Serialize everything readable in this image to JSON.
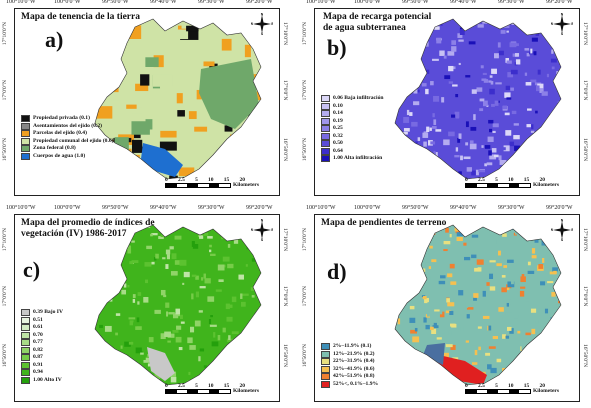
{
  "coords": {
    "top": [
      "100°10'0\"W",
      "100°0'0\"W",
      "99°50'0\"W",
      "99°40'0\"W",
      "99°30'0\"W",
      "99°20'0\"W"
    ],
    "side": [
      "17°10'0\"N",
      "17°0'0\"N",
      "16°50'0\"N"
    ]
  },
  "scale": {
    "ticks": [
      "0",
      "2.5",
      "5",
      "10",
      "15",
      "20"
    ],
    "unit": "Kilometers"
  },
  "compass": {
    "n": "N",
    "s": "S",
    "e": "E",
    "w": "W"
  },
  "panels": {
    "a": {
      "title": "Mapa de tenencia de la tierra",
      "letter": "a)",
      "legend": [
        {
          "label": "Propiedad privada (0.1)",
          "color": "#111111"
        },
        {
          "label": "Asentamientos del ejido (0.2)",
          "color": "#888888"
        },
        {
          "label": "Parcelas del ejido (0.4)",
          "color": "#f0a020"
        },
        {
          "label": "Propiedad comunal del ejido (0.6)",
          "color": "#cfe3a6"
        },
        {
          "label": "Zona federal (0.8)",
          "color": "#6fa86a"
        },
        {
          "label": "Cuerpos de agua (1.0)",
          "color": "#1e6fd0"
        }
      ]
    },
    "b": {
      "title": "Mapa de recarga potencial de agua subterranea",
      "letter": "b)",
      "legend": [
        {
          "label": "0.06 Baja infiltración",
          "color": "#dcd8f8"
        },
        {
          "label": "0.10",
          "color": "#c8c2f4"
        },
        {
          "label": "0.14",
          "color": "#b4acf0"
        },
        {
          "label": "0.19",
          "color": "#a096ec"
        },
        {
          "label": "0.25",
          "color": "#8c80e8"
        },
        {
          "label": "0.32",
          "color": "#786ae2"
        },
        {
          "label": "0.50",
          "color": "#5a4cd8"
        },
        {
          "label": "0.64",
          "color": "#3c2ecc"
        },
        {
          "label": "1.00 Alta infiltración",
          "color": "#1a10b8"
        }
      ]
    },
    "c": {
      "title": "Mapa del promedio de índices de vegetación (IV) 1986-2017",
      "letter": "c)",
      "legend": [
        {
          "label": "0.39 Bajo IV",
          "color": "#c8c8c8"
        },
        {
          "label": "0.51",
          "color": "#e8f4e0"
        },
        {
          "label": "0.61",
          "color": "#d4ecc4"
        },
        {
          "label": "0.70",
          "color": "#bfe4a6"
        },
        {
          "label": "0.77",
          "color": "#a8dc88"
        },
        {
          "label": "0.82",
          "color": "#90d468"
        },
        {
          "label": "0.87",
          "color": "#76cc48"
        },
        {
          "label": "0.91",
          "color": "#5cc230"
        },
        {
          "label": "0.94",
          "color": "#40b41c"
        },
        {
          "label": "1.00 Alto IV",
          "color": "#24a00c"
        }
      ]
    },
    "d": {
      "title": "Mapa de pendientes de terreno",
      "letter": "d)",
      "legend": [
        {
          "label": "2%–11.9% (0.1)",
          "color": "#3e8fb8"
        },
        {
          "label": "12%–21.9% (0.2)",
          "color": "#7fbfb0"
        },
        {
          "label": "22%–31.9% (0.4)",
          "color": "#e8e080"
        },
        {
          "label": "32%–41.9% (0.6)",
          "color": "#f6c050"
        },
        {
          "label": "42%–51.9% (0.8)",
          "color": "#f08030"
        },
        {
          "label": "52%<, 0.1%–1.9%",
          "color": "#e02020"
        }
      ]
    }
  }
}
